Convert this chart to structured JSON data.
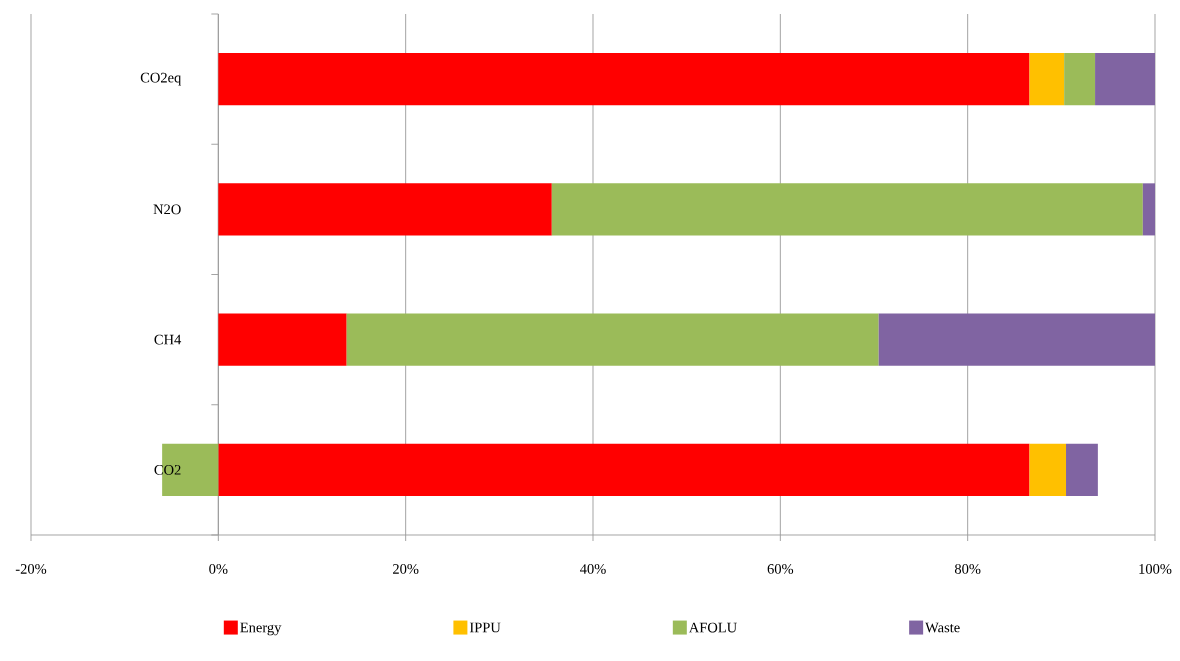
{
  "chart_data": {
    "type": "bar",
    "orientation": "horizontal",
    "stacked": true,
    "categories": [
      "CO2eq",
      "N2O",
      "CH4",
      "CO2"
    ],
    "series": [
      {
        "name": "Energy",
        "color": "#ff0000",
        "values": [
          86.6,
          35.6,
          13.7,
          86.6
        ]
      },
      {
        "name": "IPPU",
        "color": "#ffc000",
        "values": [
          3.7,
          0,
          0,
          3.9
        ]
      },
      {
        "name": "AFOLU",
        "color": "#9bbb59",
        "values": [
          3.3,
          63.1,
          56.8,
          -6.0
        ]
      },
      {
        "name": "Waste",
        "color": "#8064a2",
        "values": [
          6.4,
          1.3,
          29.5,
          3.4
        ]
      }
    ],
    "xlim": [
      -20,
      100
    ],
    "xticks": [
      {
        "value": -20,
        "label": "-20%"
      },
      {
        "value": 0,
        "label": "0%"
      },
      {
        "value": 20,
        "label": "20%"
      },
      {
        "value": 40,
        "label": "40%"
      },
      {
        "value": 60,
        "label": "60%"
      },
      {
        "value": 80,
        "label": "80%"
      },
      {
        "value": 100,
        "label": "100%"
      }
    ],
    "grid": "x",
    "legend": "bottom"
  }
}
